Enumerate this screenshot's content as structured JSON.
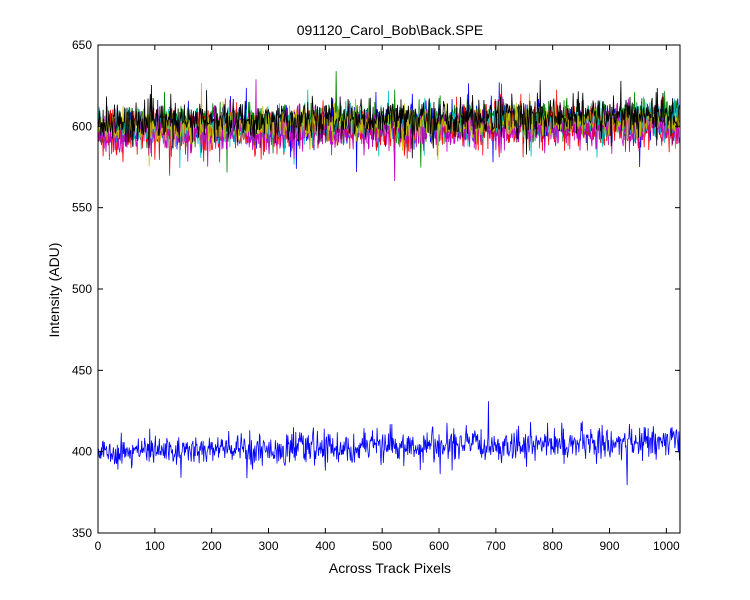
{
  "chart_data": {
    "type": "line",
    "title": "091120_Carol_Bob\\Back.SPE",
    "xlabel": "Across Track Pixels",
    "ylabel": "Intensity (ADU)",
    "xlim": [
      0,
      1024
    ],
    "ylim": [
      350,
      650
    ],
    "xticks": [
      0,
      100,
      200,
      300,
      400,
      500,
      600,
      700,
      800,
      900,
      1000
    ],
    "yticks": [
      350,
      400,
      450,
      500,
      550,
      600,
      650
    ],
    "grid": false,
    "legend": "none",
    "noisy_series_note_free": true,
    "series": [
      {
        "color": "#0000ff",
        "x_range": [
          0,
          1024
        ],
        "mean_start": 600,
        "mean_end": 603,
        "noise_sd": 6
      },
      {
        "color": "#008000",
        "x_range": [
          0,
          1024
        ],
        "mean_start": 601,
        "mean_end": 605,
        "noise_sd": 6
      },
      {
        "color": "#ff0000",
        "x_range": [
          0,
          1024
        ],
        "mean_start": 596,
        "mean_end": 601,
        "noise_sd": 7
      },
      {
        "color": "#00bfbf",
        "x_range": [
          0,
          1024
        ],
        "mean_start": 598,
        "mean_end": 603,
        "noise_sd": 6
      },
      {
        "color": "#bf00bf",
        "x_range": [
          0,
          1024
        ],
        "mean_start": 595,
        "mean_end": 600,
        "noise_sd": 6
      },
      {
        "color": "#bfbf00",
        "x_range": [
          0,
          1024
        ],
        "mean_start": 599,
        "mean_end": 604,
        "noise_sd": 5
      },
      {
        "color": "#000000",
        "x_range": [
          0,
          1024
        ],
        "mean_start": 602,
        "mean_end": 607,
        "noise_sd": 6
      },
      {
        "color": "#0000ff",
        "x_range": [
          0,
          1024
        ],
        "mean_start": 400,
        "mean_end": 406,
        "noise_sd": 5
      }
    ]
  }
}
